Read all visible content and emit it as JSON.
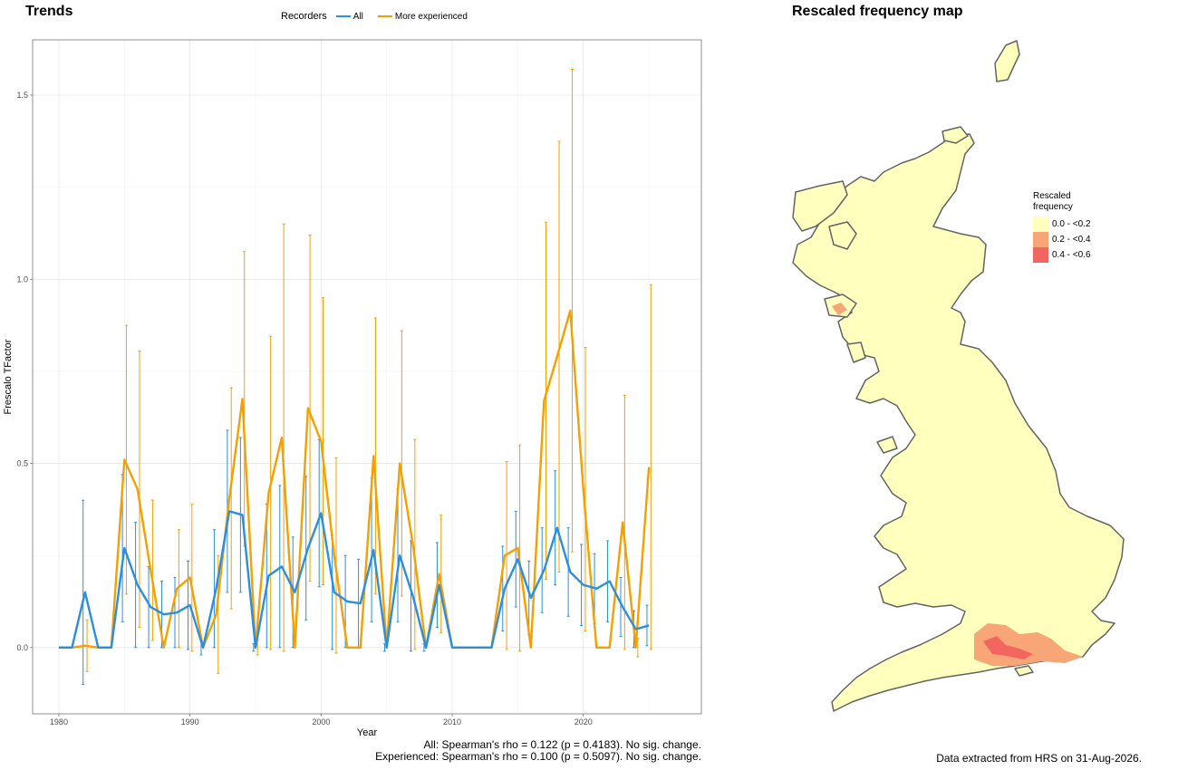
{
  "trends": {
    "title": "Trends",
    "legend": {
      "title": "Recorders",
      "items": [
        {
          "label": "All",
          "color": "#2b8fe0"
        },
        {
          "label": "More experienced",
          "color": "#f5a000"
        }
      ]
    },
    "stats": {
      "line1": "All: Spearman's rho = 0.122 (p = 0.4183). No sig. change.",
      "line2": "Experienced: Spearman's rho = 0.100 (p = 0.5097). No sig. change."
    }
  },
  "chart_data": {
    "type": "line",
    "xlabel": "Year",
    "ylabel": "Frescalo TFactor",
    "xlim": [
      1978,
      2029
    ],
    "ylim": [
      -0.18,
      1.65
    ],
    "xticks": [
      1980,
      1990,
      2000,
      2010,
      2020
    ],
    "yticks": [
      0.0,
      0.5,
      1.0,
      1.5
    ],
    "grid": true,
    "legend_position": "top",
    "series": [
      {
        "name": "All",
        "color": "#2b8fe0",
        "x": [
          1980,
          1981,
          1982,
          1983,
          1984,
          1985,
          1986,
          1987,
          1988,
          1989,
          1990,
          1991,
          1992,
          1993,
          1994,
          1995,
          1996,
          1997,
          1998,
          1999,
          2000,
          2001,
          2002,
          2003,
          2004,
          2005,
          2006,
          2007,
          2008,
          2009,
          2010,
          2011,
          2012,
          2013,
          2014,
          2015,
          2016,
          2017,
          2018,
          2019,
          2020,
          2021,
          2022,
          2023,
          2024,
          2025
        ],
        "y": [
          0,
          0,
          0.15,
          0,
          0,
          0.27,
          0.17,
          0.11,
          0.09,
          0.095,
          0.115,
          0,
          0.16,
          0.37,
          0.36,
          0,
          0.195,
          0.22,
          0.15,
          0.27,
          0.365,
          0.15,
          0.125,
          0.12,
          0.265,
          0,
          0.25,
          0.14,
          0,
          0.17,
          0,
          0,
          0,
          0,
          0.16,
          0.24,
          0.135,
          0.21,
          0.325,
          0.205,
          0.17,
          0.16,
          0.18,
          0.11,
          0.05,
          0.06
        ],
        "err": [
          0,
          0,
          0.25,
          0,
          0,
          0.2,
          0.17,
          0.11,
          0.09,
          0.095,
          0.12,
          0.02,
          0.16,
          0.22,
          0.21,
          0.01,
          0.195,
          0.22,
          0.15,
          0.195,
          0.2,
          0.155,
          0.125,
          0.12,
          0.195,
          0.01,
          0.18,
          0.15,
          0.01,
          0.115,
          0,
          0,
          0,
          0,
          0.115,
          0.13,
          0.1,
          0.115,
          0.155,
          0.12,
          0.11,
          0.095,
          0.11,
          0.08,
          0.05,
          0.055
        ]
      },
      {
        "name": "More experienced",
        "color": "#f5a000",
        "x": [
          1980,
          1981,
          1982,
          1983,
          1984,
          1985,
          1986,
          1987,
          1988,
          1989,
          1990,
          1991,
          1992,
          1993,
          1994,
          1995,
          1996,
          1997,
          1998,
          1999,
          2000,
          2001,
          2002,
          2003,
          2004,
          2005,
          2006,
          2007,
          2008,
          2009,
          2010,
          2011,
          2012,
          2013,
          2014,
          2015,
          2016,
          2017,
          2018,
          2019,
          2020,
          2021,
          2022,
          2023,
          2024,
          2025
        ],
        "y": [
          0,
          0,
          0.005,
          0,
          0,
          0.51,
          0.43,
          0.21,
          0,
          0.16,
          0.19,
          0,
          0.09,
          0.405,
          0.675,
          0,
          0.42,
          0.57,
          0,
          0.65,
          0.56,
          0.25,
          0,
          0,
          0.52,
          0,
          0.5,
          0.28,
          0,
          0.2,
          0,
          0,
          0,
          0,
          0.25,
          0.27,
          0,
          0.67,
          0.79,
          0.915,
          0.43,
          0,
          0,
          0.34,
          0,
          0.49
        ],
        "err": [
          0,
          0,
          0.07,
          0,
          0,
          0.365,
          0.375,
          0.19,
          0,
          0.16,
          0.2,
          0,
          0.16,
          0.3,
          0.4,
          0.02,
          0.425,
          0.58,
          0,
          0.47,
          0.39,
          0.265,
          0,
          0,
          0.375,
          0,
          0.36,
          0.285,
          0,
          0.16,
          0,
          0,
          0,
          0,
          0.255,
          0.28,
          0,
          0.485,
          0.585,
          0.655,
          0.385,
          0,
          0,
          0.345,
          0.025,
          0.495
        ]
      }
    ]
  },
  "map": {
    "title": "Rescaled frequency map",
    "legend_title_line1": "Rescaled",
    "legend_title_line2": "frequency",
    "classes": [
      {
        "label": "0.0 - <0.2",
        "color": "#ffffbe"
      },
      {
        "label": "0.2 - <0.4",
        "color": "#f8a678"
      },
      {
        "label": "0.4 - <0.6",
        "color": "#f26660"
      }
    ],
    "land_color": "#ffffbe",
    "outline_color": "#636363",
    "footer": "Data extracted from HRS on 31-Aug-2026."
  }
}
